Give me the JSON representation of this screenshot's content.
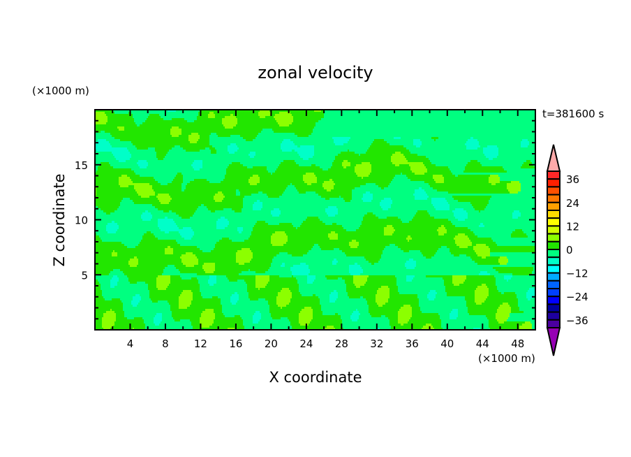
{
  "chart_data": {
    "type": "heatmap",
    "subtype": "filled-contour",
    "title": "zonal velocity",
    "xlabel": "X coordinate",
    "ylabel": "Z coordinate",
    "x_units": "(×1000 m)",
    "y_units": "(×1000 m)",
    "time_label": "t=381600 s",
    "xlim": [
      0,
      50
    ],
    "ylim": [
      0,
      20
    ],
    "x_ticks": [
      4,
      8,
      12,
      16,
      20,
      24,
      28,
      32,
      36,
      40,
      44,
      48
    ],
    "y_ticks": [
      5,
      10,
      15
    ],
    "colorbar": {
      "levels": [
        -40,
        -36,
        -32,
        -28,
        -24,
        -20,
        -16,
        -12,
        -8,
        -4,
        0,
        4,
        8,
        12,
        16,
        20,
        24,
        28,
        32,
        36,
        40
      ],
      "tick_labels": [
        "36",
        "24",
        "12",
        "0",
        "−12",
        "−24",
        "−36"
      ],
      "tick_values": [
        36,
        24,
        12,
        0,
        -12,
        -24,
        -36
      ],
      "colors_top_to_bottom": [
        "#ff2828",
        "#ff2000",
        "#ff5000",
        "#ff7800",
        "#ffa000",
        "#ffdc00",
        "#ffff00",
        "#d2ff00",
        "#8cff00",
        "#22e600",
        "#00ff80",
        "#00ffc8",
        "#00ffff",
        "#00aaff",
        "#0064ff",
        "#0040ff",
        "#0000ff",
        "#0000a0",
        "#1e00a0",
        "#4b00a0"
      ],
      "over_color": "#ffaaaa",
      "under_color": "#9600b4"
    },
    "dominant_ranges": [
      "-4 to 0",
      "0 to 4"
    ],
    "minor_ranges": [
      "-8 to -4",
      "4 to 8"
    ]
  }
}
